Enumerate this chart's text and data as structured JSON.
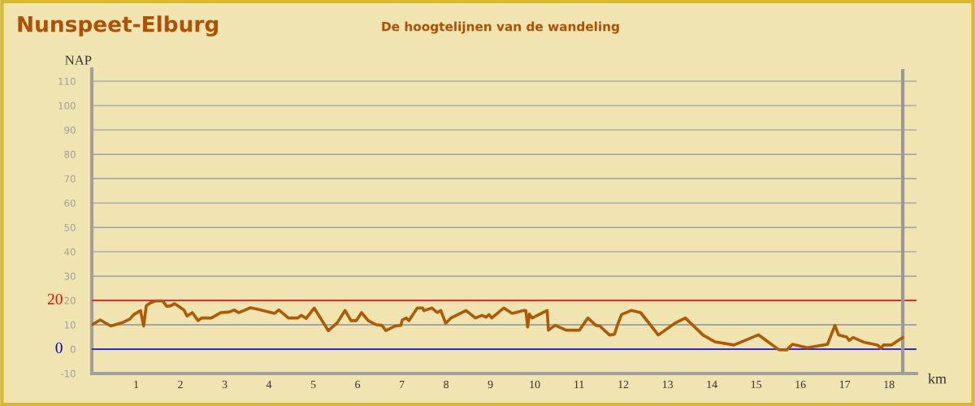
{
  "chart_data": {
    "type": "line",
    "title": "Nunspeet-Elburg",
    "subtitle": "De hoogtelijnen van de wandeling",
    "xlabel": "km",
    "ylabel": "NAP",
    "series": [
      {
        "color": "#b05a00",
        "x": [
          0,
          0.19,
          0.43,
          0.68,
          0.86,
          0.95,
          1.1,
          1.17,
          1.23,
          1.32,
          1.44,
          1.6,
          1.69,
          1.78,
          1.87,
          1.96,
          2.08,
          2.15,
          2.27,
          2.4,
          2.48,
          2.7,
          2.91,
          3.09,
          3.22,
          3.31,
          3.43,
          3.58,
          3.74,
          4.13,
          4.22,
          4.44,
          4.65,
          4.73,
          4.84,
          5.02,
          5.34,
          5.54,
          5.72,
          5.85,
          5.97,
          6.09,
          6.24,
          6.43,
          6.55,
          6.64,
          6.85,
          6.98,
          7.01,
          7.1,
          7.16,
          7.35,
          7.47,
          7.5,
          7.68,
          7.8,
          7.88,
          7.99,
          8.11,
          8.45,
          8.66,
          8.81,
          8.9,
          8.97,
          9.03,
          9.3,
          9.49,
          9.76,
          9.8,
          9.84,
          9.88,
          9.94,
          10.28,
          10.31,
          10.46,
          10.71,
          11.01,
          11.2,
          11.38,
          11.47,
          11.69,
          11.8,
          11.87,
          11.96,
          12.18,
          12.39,
          12.61,
          12.79,
          13.16,
          13.4,
          13.8,
          14.07,
          14.5,
          15.05,
          15.51,
          15.69,
          15.82,
          16.15,
          16.61,
          16.78,
          16.86,
          17.04,
          17.1,
          17.19,
          17.44,
          17.74,
          17.82,
          17.87,
          18.05,
          18.3
        ],
        "values": [
          10,
          12,
          9.5,
          10.8,
          12.4,
          14.2,
          15.8,
          9.5,
          17.8,
          19,
          19.8,
          19.8,
          17.6,
          17.8,
          18.7,
          17.6,
          16.1,
          13.6,
          15,
          11.7,
          12.8,
          12.8,
          15,
          15.2,
          16.1,
          15,
          15.8,
          17,
          16.4,
          14.7,
          16.1,
          12.8,
          12.8,
          13.9,
          12.6,
          16.9,
          7.6,
          10.8,
          15.9,
          11.7,
          11.7,
          15,
          11.7,
          10,
          9.8,
          7.6,
          9.5,
          9.8,
          12,
          12.8,
          11.7,
          16.9,
          16.9,
          15.8,
          16.9,
          15,
          15.9,
          10.6,
          12.8,
          15.9,
          12.8,
          13.9,
          13.1,
          14.2,
          12.8,
          16.9,
          14.7,
          15.9,
          15.8,
          9.1,
          14.4,
          12.8,
          15.9,
          7.8,
          9.8,
          7.8,
          7.8,
          12.8,
          9.8,
          9.5,
          5.8,
          6.1,
          10,
          14.2,
          15.9,
          15,
          10,
          5.8,
          10.6,
          12.8,
          5.8,
          3,
          1.7,
          5.9,
          -0.2,
          -0.3,
          2,
          0.6,
          2,
          9.8,
          5.8,
          5,
          3.6,
          4.8,
          2.8,
          1.7,
          0.3,
          1.7,
          1.7,
          4.7
        ]
      }
    ],
    "xlim": [
      0,
      18.62
    ],
    "xticks": [
      1,
      2,
      3,
      4,
      5,
      6,
      7,
      8,
      9,
      10,
      11,
      12,
      13,
      14,
      15,
      16,
      17,
      18
    ],
    "ylim": [
      -10,
      115
    ],
    "yticks": [
      -10,
      0,
      10,
      20,
      30,
      40,
      50,
      60,
      70,
      80,
      90,
      100,
      110
    ],
    "grid": "y",
    "legend": false,
    "marker": "none",
    "line_style": "solid",
    "ref_lines": [
      {
        "axis": "y",
        "value": 20,
        "label": "20",
        "color": "#ff0000"
      },
      {
        "axis": "y",
        "value": 0,
        "label": "0",
        "color": "#0000ff"
      },
      {
        "axis": "x",
        "value": 18.31,
        "color": "#999999"
      }
    ]
  }
}
